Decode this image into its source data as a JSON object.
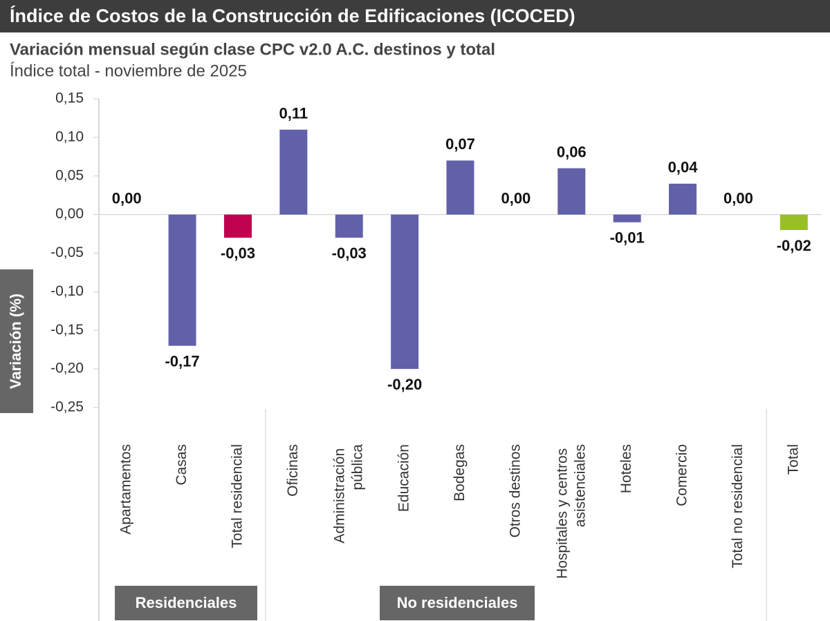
{
  "chart_data": {
    "type": "bar",
    "title": "Índice de Costos de la Construcción de Edificaciones (ICOCED)",
    "subtitle": "Variación mensual según clase CPC v2.0 A.C. destinos y total",
    "subtitle2": "Índice total - noviembre de 2025",
    "y_label": "Variación (%)",
    "categories": [
      "Apartamentos",
      "Casas",
      "Total residencial",
      "Oficinas",
      "Administración pública",
      "Educación",
      "Bodegas",
      "Otros destinos",
      "Hospitales y centros asistenciales",
      "Hoteles",
      "Comercio",
      "Total no residencial",
      "Total"
    ],
    "values": [
      0,
      -0.17,
      -0.03,
      0.11,
      -0.03,
      -0.2,
      0.07,
      0,
      0.06,
      -0.01,
      0.04,
      0,
      -0.02
    ],
    "value_labels": [
      "0,00",
      "-0,17",
      "-0,03",
      "0,11",
      "-0,03",
      "-0,20",
      "0,07",
      "0,00",
      "0,06",
      "-0,01",
      "0,04",
      "0,00",
      "-0,02"
    ],
    "colors": [
      "#6161a9",
      "#6161a9",
      "#c1004f",
      "#6161a9",
      "#6161a9",
      "#6161a9",
      "#6161a9",
      "#6161a9",
      "#6161a9",
      "#6161a9",
      "#6161a9",
      "#6161a9",
      "#99bf27"
    ],
    "groups": [
      "Residenciales",
      "No residenciales"
    ],
    "ylim": [
      -0.25,
      0.15
    ],
    "yticks": [
      {
        "value": -0.25,
        "label": "-0,25"
      },
      {
        "value": -0.2,
        "label": "-0,20"
      },
      {
        "value": -0.15,
        "label": "-0,15"
      },
      {
        "value": -0.1,
        "label": "-0,10"
      },
      {
        "value": -0.05,
        "label": "-0,05"
      },
      {
        "value": 0,
        "label": "0,00"
      },
      {
        "value": 0.05,
        "label": "0,05"
      },
      {
        "value": 0.1,
        "label": "0,10"
      },
      {
        "value": 0.15,
        "label": "0,15"
      }
    ],
    "grid": false
  }
}
